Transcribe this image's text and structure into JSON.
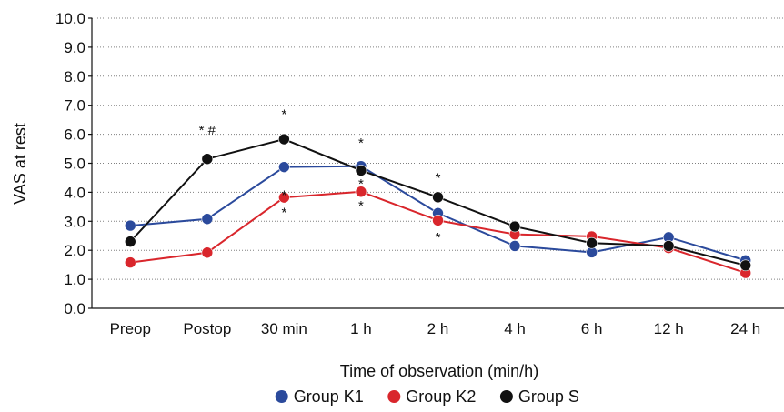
{
  "chart_data": {
    "type": "line",
    "xlabel": "Time of observation (min/h)",
    "ylabel": "VAS at rest",
    "categories": [
      "Preop",
      "Postop",
      "30 min",
      "1 h",
      "2 h",
      "4 h",
      "6 h",
      "12 h",
      "24 h"
    ],
    "ylim": [
      0,
      10
    ],
    "yticks": [
      "0.0",
      "1.0",
      "2.0",
      "3.0",
      "4.0",
      "5.0",
      "6.0",
      "7.0",
      "8.0",
      "9.0",
      "10.0"
    ],
    "grid": "horizontal dotted",
    "legend_position": "bottom",
    "series": [
      {
        "name": "Group K1",
        "color": "#2b4a9c",
        "values": [
          2.85,
          3.08,
          4.87,
          4.9,
          3.28,
          2.15,
          1.93,
          2.45,
          1.65
        ]
      },
      {
        "name": "Group K2",
        "color": "#d9262c",
        "values": [
          1.58,
          1.92,
          3.82,
          4.02,
          3.03,
          2.55,
          2.48,
          2.08,
          1.22
        ]
      },
      {
        "name": "Group S",
        "color": "#111111",
        "values": [
          2.3,
          5.15,
          5.83,
          4.75,
          3.83,
          2.82,
          2.25,
          2.15,
          1.48
        ]
      }
    ],
    "annotations": [
      {
        "text": "* #",
        "category": "Postop",
        "value": 6.15
      },
      {
        "text": "*",
        "category": "30 min",
        "value": 6.7
      },
      {
        "text": "*",
        "category": "30 min",
        "value": 3.9
      },
      {
        "text": "*",
        "category": "30 min",
        "value": 3.3
      },
      {
        "text": "*",
        "category": "1 h",
        "value": 5.7
      },
      {
        "text": "*",
        "category": "1 h",
        "value": 4.3
      },
      {
        "text": "*",
        "category": "1 h",
        "value": 3.55
      },
      {
        "text": "*",
        "category": "2 h",
        "value": 4.5
      },
      {
        "text": "*",
        "category": "2 h",
        "value": 2.45
      }
    ]
  }
}
